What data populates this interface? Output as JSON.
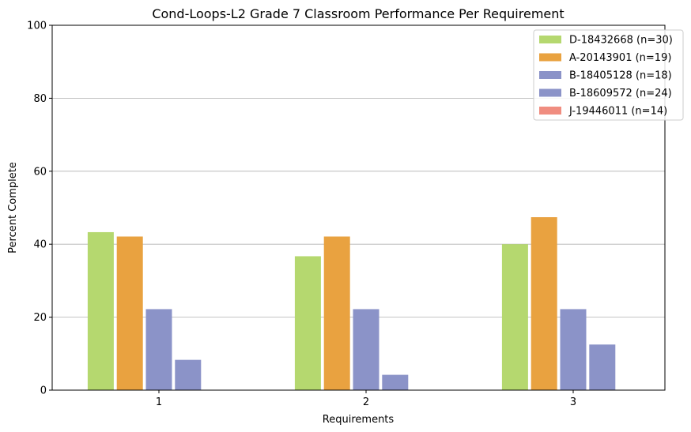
{
  "chart_data": {
    "type": "bar",
    "title": "Cond-Loops-L2 Grade 7 Classroom Performance Per Requirement",
    "xlabel": "Requirements",
    "ylabel": "Percent Complete",
    "categories": [
      "1",
      "2",
      "3"
    ],
    "ylim": [
      0,
      100
    ],
    "yticks": [
      0,
      20,
      40,
      60,
      80,
      100
    ],
    "grid": "horizontal",
    "legend_position": "top-right",
    "series": [
      {
        "name": "D-18432668 (n=30)",
        "color": "#b5d86f",
        "values": [
          43.3,
          36.7,
          40.0
        ]
      },
      {
        "name": "A-20143901 (n=19)",
        "color": "#e9a240",
        "values": [
          42.1,
          42.1,
          47.4
        ]
      },
      {
        "name": "B-18405128 (n=18)",
        "color": "#8b93c8",
        "values": [
          22.2,
          22.2,
          22.2
        ]
      },
      {
        "name": "B-18609572 (n=24)",
        "color": "#8b93c8",
        "values": [
          8.3,
          4.2,
          12.5
        ]
      },
      {
        "name": "J-19446011 (n=14)",
        "color": "#f08d80",
        "values": [
          0,
          0,
          0
        ]
      }
    ]
  }
}
